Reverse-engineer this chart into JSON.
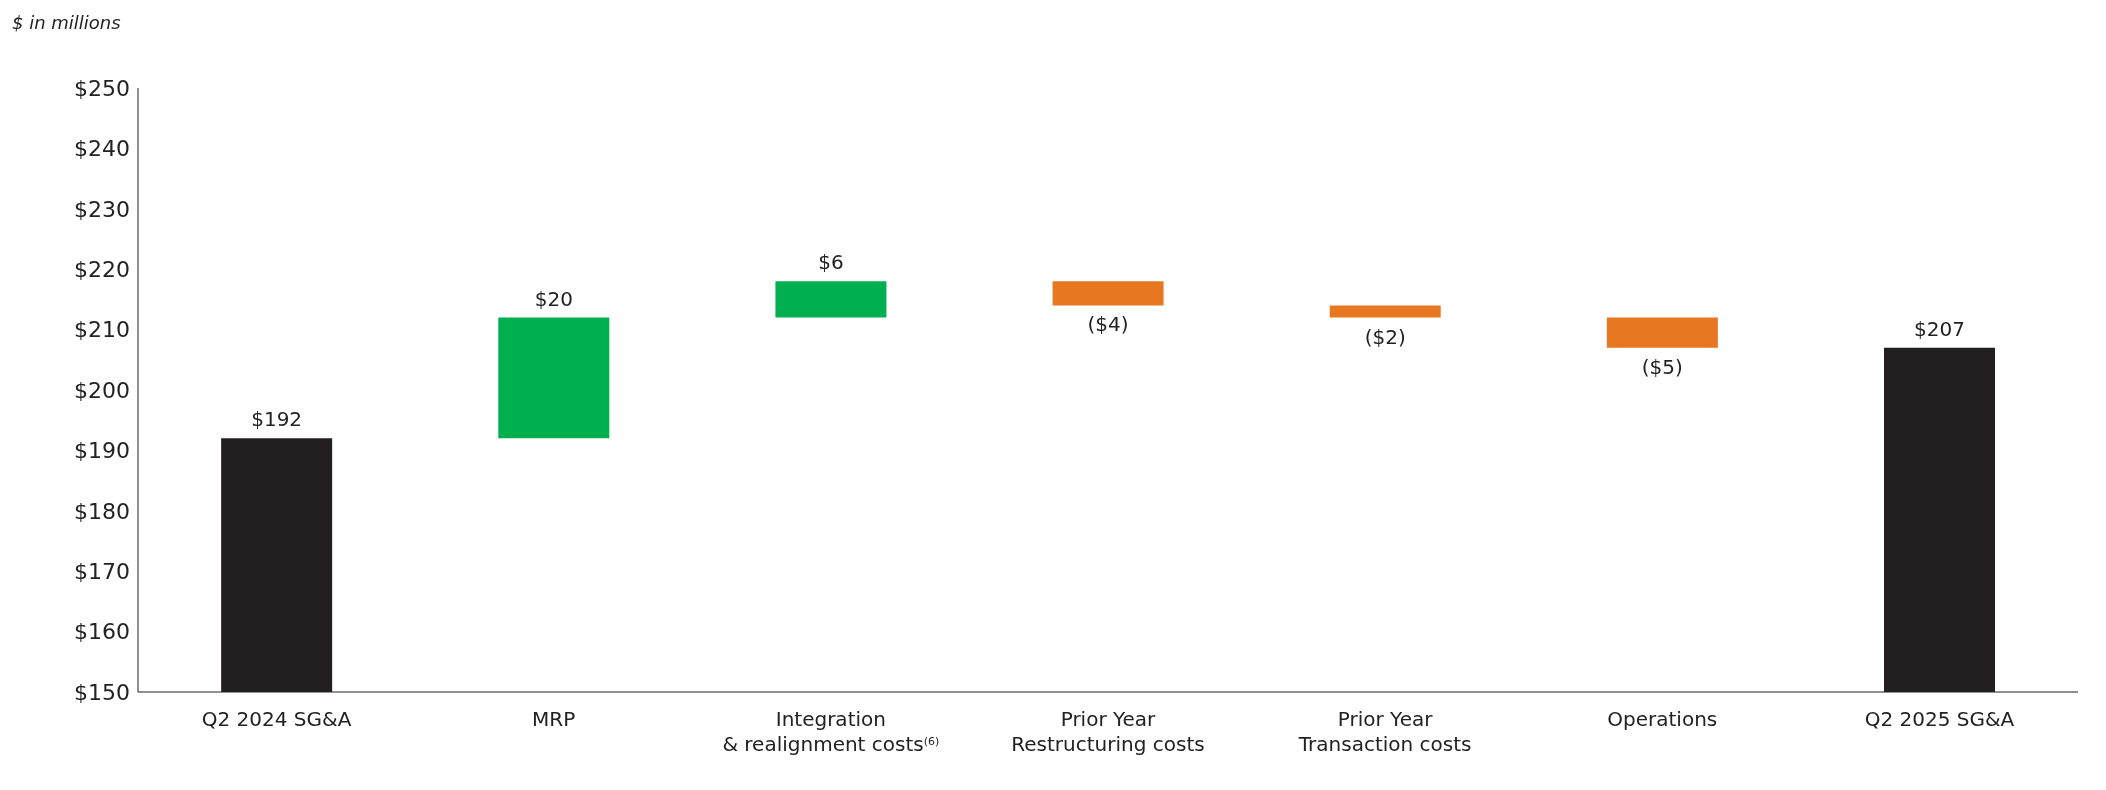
{
  "chart_data": {
    "type": "bar",
    "ylabel": "$ in millions",
    "categories": [
      "Q2 2024 SG&A",
      "MRP",
      "Integration\n& realignment costs$^{(6)}$",
      "Prior Year\nRestructuring costs",
      "Prior Year\nTransaction costs",
      "Operations",
      "Q2 2025 SG&A"
    ],
    "values": [
      192,
      20,
      6,
      -4,
      -2,
      -5,
      207
    ],
    "base": [
      null,
      192,
      212,
      218,
      214,
      212,
      null
    ],
    "colors": [
      "#231f20",
      "#00b050",
      "#00b050",
      "#e87722",
      "#e87722",
      "#e87722",
      "#231f20"
    ],
    "value_labels": [
      "$192",
      "$20",
      "$6",
      "($4)",
      "($2)",
      "($5)",
      "$207"
    ],
    "ylim": [
      150,
      250
    ],
    "yticks": [
      {
        "value": 150,
        "label": "$150"
      },
      {
        "value": 160,
        "label": "$160"
      },
      {
        "value": 170,
        "label": "$170"
      },
      {
        "value": 180,
        "label": "$180"
      },
      {
        "value": 190,
        "label": "$190"
      },
      {
        "value": 200,
        "label": "$200"
      },
      {
        "value": 210,
        "label": "$210"
      },
      {
        "value": 220,
        "label": "$220"
      },
      {
        "value": 230,
        "label": "$230"
      },
      {
        "value": 240,
        "label": "$240"
      },
      {
        "value": 250,
        "label": "$250"
      }
    ],
    "grid": false,
    "legend": false
  }
}
